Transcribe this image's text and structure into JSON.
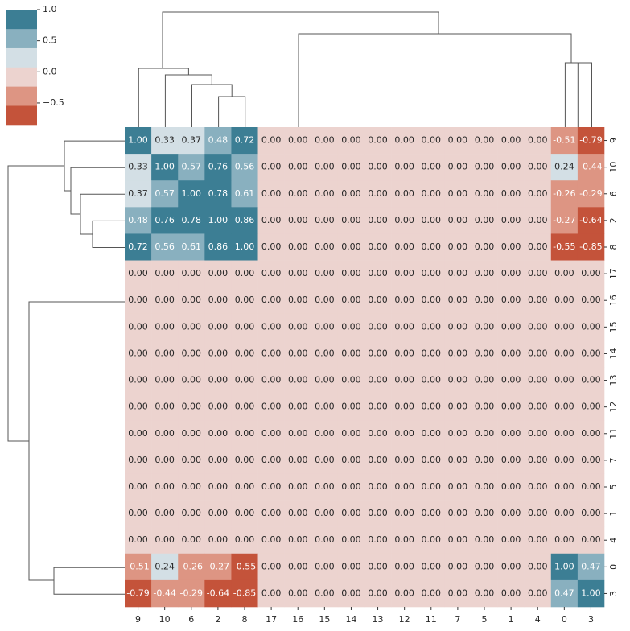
{
  "chart_data": {
    "type": "heatmap",
    "x_labels": [
      "9",
      "10",
      "6",
      "2",
      "8",
      "17",
      "16",
      "15",
      "14",
      "13",
      "12",
      "11",
      "7",
      "5",
      "1",
      "4",
      "0",
      "3"
    ],
    "y_labels": [
      "9",
      "10",
      "6",
      "2",
      "8",
      "17",
      "16",
      "15",
      "14",
      "13",
      "12",
      "11",
      "7",
      "5",
      "1",
      "4",
      "0",
      "3"
    ],
    "values": [
      [
        1.0,
        0.33,
        0.37,
        0.48,
        0.72,
        0,
        0,
        0,
        0,
        0,
        0,
        0,
        0,
        0,
        0,
        0,
        -0.51,
        -0.79
      ],
      [
        0.33,
        1.0,
        0.57,
        0.76,
        0.56,
        0,
        0,
        0,
        0,
        0,
        0,
        0,
        0,
        0,
        0,
        0,
        0.24,
        -0.44
      ],
      [
        0.37,
        0.57,
        1.0,
        0.78,
        0.61,
        0,
        0,
        0,
        0,
        0,
        0,
        0,
        0,
        0,
        0,
        0,
        -0.26,
        -0.29
      ],
      [
        0.48,
        0.76,
        0.78,
        1.0,
        0.86,
        0,
        0,
        0,
        0,
        0,
        0,
        0,
        0,
        0,
        0,
        0,
        -0.27,
        -0.64
      ],
      [
        0.72,
        0.56,
        0.61,
        0.86,
        1.0,
        0,
        0,
        0,
        0,
        0,
        0,
        0,
        0,
        0,
        0,
        0,
        -0.55,
        -0.85
      ],
      [
        0,
        0,
        0,
        0,
        0,
        0,
        0,
        0,
        0,
        0,
        0,
        0,
        0,
        0,
        0,
        0,
        0,
        0
      ],
      [
        0,
        0,
        0,
        0,
        0,
        0,
        0,
        0,
        0,
        0,
        0,
        0,
        0,
        0,
        0,
        0,
        0,
        0
      ],
      [
        0,
        0,
        0,
        0,
        0,
        0,
        0,
        0,
        0,
        0,
        0,
        0,
        0,
        0,
        0,
        0,
        0,
        0
      ],
      [
        0,
        0,
        0,
        0,
        0,
        0,
        0,
        0,
        0,
        0,
        0,
        0,
        0,
        0,
        0,
        0,
        0,
        0
      ],
      [
        0,
        0,
        0,
        0,
        0,
        0,
        0,
        0,
        0,
        0,
        0,
        0,
        0,
        0,
        0,
        0,
        0,
        0
      ],
      [
        0,
        0,
        0,
        0,
        0,
        0,
        0,
        0,
        0,
        0,
        0,
        0,
        0,
        0,
        0,
        0,
        0,
        0
      ],
      [
        0,
        0,
        0,
        0,
        0,
        0,
        0,
        0,
        0,
        0,
        0,
        0,
        0,
        0,
        0,
        0,
        0,
        0
      ],
      [
        0,
        0,
        0,
        0,
        0,
        0,
        0,
        0,
        0,
        0,
        0,
        0,
        0,
        0,
        0,
        0,
        0,
        0
      ],
      [
        0,
        0,
        0,
        0,
        0,
        0,
        0,
        0,
        0,
        0,
        0,
        0,
        0,
        0,
        0,
        0,
        0,
        0
      ],
      [
        0,
        0,
        0,
        0,
        0,
        0,
        0,
        0,
        0,
        0,
        0,
        0,
        0,
        0,
        0,
        0,
        0,
        0
      ],
      [
        0,
        0,
        0,
        0,
        0,
        0,
        0,
        0,
        0,
        0,
        0,
        0,
        0,
        0,
        0,
        0,
        0,
        0
      ],
      [
        -0.51,
        0.24,
        -0.26,
        -0.27,
        -0.55,
        0,
        0,
        0,
        0,
        0,
        0,
        0,
        0,
        0,
        0,
        0,
        1.0,
        0.47
      ],
      [
        -0.79,
        -0.44,
        -0.29,
        -0.64,
        -0.85,
        0,
        0,
        0,
        0,
        0,
        0,
        0,
        0,
        0,
        0,
        0,
        0.47,
        1.0
      ]
    ],
    "value_labels": [
      [
        "1.00",
        "0.33",
        "0.37",
        "0.48",
        "0.72",
        "0.00",
        "0.00",
        "0.00",
        "0.00",
        "0.00",
        "0.00",
        "0.00",
        "0.00",
        "0.00",
        "0.00",
        "0.00",
        "-0.51",
        "-0.79"
      ],
      [
        "0.33",
        "1.00",
        "0.57",
        "0.76",
        "0.56",
        "0.00",
        "0.00",
        "0.00",
        "0.00",
        "0.00",
        "0.00",
        "0.00",
        "0.00",
        "0.00",
        "0.00",
        "0.00",
        "0.24",
        "-0.44"
      ],
      [
        "0.37",
        "0.57",
        "1.00",
        "0.78",
        "0.61",
        "0.00",
        "0.00",
        "0.00",
        "0.00",
        "0.00",
        "0.00",
        "0.00",
        "0.00",
        "0.00",
        "0.00",
        "0.00",
        "-0.26",
        "-0.29"
      ],
      [
        "0.48",
        "0.76",
        "0.78",
        "1.00",
        "0.86",
        "0.00",
        "0.00",
        "0.00",
        "0.00",
        "0.00",
        "0.00",
        "0.00",
        "0.00",
        "0.00",
        "0.00",
        "0.00",
        "-0.27",
        "-0.64"
      ],
      [
        "0.72",
        "0.56",
        "0.61",
        "0.86",
        "1.00",
        "0.00",
        "0.00",
        "0.00",
        "0.00",
        "0.00",
        "0.00",
        "0.00",
        "0.00",
        "0.00",
        "0.00",
        "0.00",
        "-0.55",
        "-0.85"
      ],
      [
        "0.00",
        "0.00",
        "0.00",
        "0.00",
        "0.00",
        "0.00",
        "0.00",
        "0.00",
        "0.00",
        "0.00",
        "0.00",
        "0.00",
        "0.00",
        "0.00",
        "0.00",
        "0.00",
        "0.00",
        "0.00"
      ],
      [
        "0.00",
        "0.00",
        "0.00",
        "0.00",
        "0.00",
        "0.00",
        "0.00",
        "0.00",
        "0.00",
        "0.00",
        "0.00",
        "0.00",
        "0.00",
        "0.00",
        "0.00",
        "0.00",
        "0.00",
        "0.00"
      ],
      [
        "0.00",
        "0.00",
        "0.00",
        "0.00",
        "0.00",
        "0.00",
        "0.00",
        "0.00",
        "0.00",
        "0.00",
        "0.00",
        "0.00",
        "0.00",
        "0.00",
        "0.00",
        "0.00",
        "0.00",
        "0.00"
      ],
      [
        "0.00",
        "0.00",
        "0.00",
        "0.00",
        "0.00",
        "0.00",
        "0.00",
        "0.00",
        "0.00",
        "0.00",
        "0.00",
        "0.00",
        "0.00",
        "0.00",
        "0.00",
        "0.00",
        "0.00",
        "0.00"
      ],
      [
        "0.00",
        "0.00",
        "0.00",
        "0.00",
        "0.00",
        "0.00",
        "0.00",
        "0.00",
        "0.00",
        "0.00",
        "0.00",
        "0.00",
        "0.00",
        "0.00",
        "0.00",
        "0.00",
        "0.00",
        "0.00"
      ],
      [
        "0.00",
        "0.00",
        "0.00",
        "0.00",
        "0.00",
        "0.00",
        "0.00",
        "0.00",
        "0.00",
        "0.00",
        "0.00",
        "0.00",
        "0.00",
        "0.00",
        "0.00",
        "0.00",
        "0.00",
        "0.00"
      ],
      [
        "0.00",
        "0.00",
        "0.00",
        "0.00",
        "0.00",
        "0.00",
        "0.00",
        "0.00",
        "0.00",
        "0.00",
        "0.00",
        "0.00",
        "0.00",
        "0.00",
        "0.00",
        "0.00",
        "0.00",
        "0.00"
      ],
      [
        "0.00",
        "0.00",
        "0.00",
        "0.00",
        "0.00",
        "0.00",
        "0.00",
        "0.00",
        "0.00",
        "0.00",
        "0.00",
        "0.00",
        "0.00",
        "0.00",
        "0.00",
        "0.00",
        "0.00",
        "0.00"
      ],
      [
        "0.00",
        "0.00",
        "0.00",
        "0.00",
        "0.00",
        "0.00",
        "0.00",
        "0.00",
        "0.00",
        "0.00",
        "0.00",
        "0.00",
        "0.00",
        "0.00",
        "0.00",
        "0.00",
        "0.00",
        "0.00"
      ],
      [
        "0.00",
        "0.00",
        "0.00",
        "0.00",
        "0.00",
        "0.00",
        "0.00",
        "0.00",
        "0.00",
        "0.00",
        "0.00",
        "0.00",
        "0.00",
        "0.00",
        "0.00",
        "0.00",
        "0.00",
        "0.00"
      ],
      [
        "0.00",
        "0.00",
        "0.00",
        "0.00",
        "0.00",
        "0.00",
        "0.00",
        "0.00",
        "0.00",
        "0.00",
        "0.00",
        "0.00",
        "0.00",
        "0.00",
        "0.00",
        "0.00",
        "0.00",
        "0.00"
      ],
      [
        "-0.51",
        "0.24",
        "-0.26",
        "-0.27",
        "-0.55",
        "0.00",
        "0.00",
        "0.00",
        "0.00",
        "0.00",
        "0.00",
        "0.00",
        "0.00",
        "0.00",
        "0.00",
        "0.00",
        "1.00",
        "0.47"
      ],
      [
        "-0.79",
        "-0.44",
        "-0.29",
        "-0.64",
        "-0.85",
        "0.00",
        "0.00",
        "0.00",
        "0.00",
        "0.00",
        "0.00",
        "0.00",
        "0.00",
        "0.00",
        "0.00",
        "0.00",
        "0.47",
        "1.00"
      ]
    ],
    "clim": [
      -0.85,
      1.0
    ],
    "colors": [
      "#c4533a",
      "#dd9583",
      "#ecd3cf",
      "#d3dfe5",
      "#89b0bf",
      "#3c7e94"
    ],
    "colorbar_ticks": [
      {
        "value": 1.0,
        "label": "1.0"
      },
      0.5,
      {
        "value": 0,
        "label": "0.0"
      },
      {
        "value": -0.5,
        "label": "−0.5"
      }
    ]
  }
}
